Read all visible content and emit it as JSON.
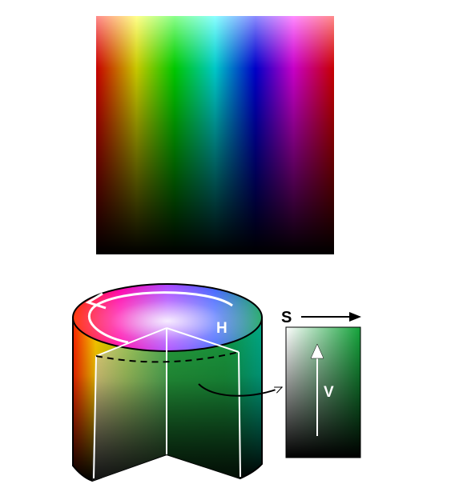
{
  "diagram": {
    "labels": {
      "hue": "H",
      "saturation": "S",
      "value": "V"
    },
    "colors": {
      "background": "#ffffff",
      "outline": "#000000",
      "cut_face_green": "#1f9a3a",
      "edge_line": "#ffffff"
    },
    "hue_spectrum": [
      "#ff0000",
      "#ffff00",
      "#00ff00",
      "#00ffff",
      "#0000ff",
      "#ff00ff",
      "#ff0000"
    ]
  }
}
